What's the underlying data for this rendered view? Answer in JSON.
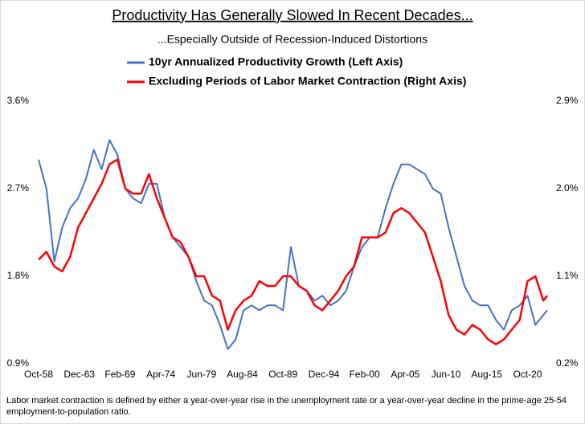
{
  "chart_data": {
    "type": "line",
    "title": "Productivity Has Generally Slowed In Recent Decades...",
    "subtitle": "...Especially Outside of Recession-Induced Distortions",
    "footnote": "Labor market contraction is defined by either a year-over-year rise in the unemployment rate or a year-over-year decline in the prime-age 25-54 employment-to-population ratio.",
    "x": [
      1958.75,
      1959.75,
      1960.75,
      1961.75,
      1962.75,
      1963.75,
      1964.75,
      1965.75,
      1966.75,
      1967.75,
      1968.75,
      1969.75,
      1970.75,
      1971.75,
      1972.75,
      1973.75,
      1974.75,
      1975.75,
      1976.75,
      1977.75,
      1978.75,
      1979.75,
      1980.75,
      1981.75,
      1982.75,
      1983.75,
      1984.75,
      1985.75,
      1986.75,
      1987.75,
      1988.75,
      1989.75,
      1990.75,
      1991.75,
      1992.75,
      1993.75,
      1994.75,
      1995.75,
      1996.75,
      1997.75,
      1998.75,
      1999.75,
      2000.75,
      2001.75,
      2002.75,
      2003.75,
      2004.75,
      2005.75,
      2006.75,
      2007.75,
      2008.75,
      2009.75,
      2010.75,
      2011.75,
      2012.75,
      2013.75,
      2014.75,
      2015.75,
      2016.75,
      2017.75,
      2018.75,
      2019.75,
      2020.75,
      2021.75,
      2022.75,
      2023.25
    ],
    "xlim": [
      1958.75,
      2023.25
    ],
    "xticks": [
      {
        "value": 1958.75,
        "label": "Oct-58"
      },
      {
        "value": 1963.92,
        "label": "Dec-63"
      },
      {
        "value": 1969.08,
        "label": "Feb-69"
      },
      {
        "value": 1974.25,
        "label": "Apr-74"
      },
      {
        "value": 1979.42,
        "label": "Jun-79"
      },
      {
        "value": 1984.58,
        "label": "Aug-84"
      },
      {
        "value": 1989.75,
        "label": "Oct-89"
      },
      {
        "value": 1994.92,
        "label": "Dec-94"
      },
      {
        "value": 2000.08,
        "label": "Feb-00"
      },
      {
        "value": 2005.25,
        "label": "Apr-05"
      },
      {
        "value": 2010.42,
        "label": "Jun-10"
      },
      {
        "value": 2015.58,
        "label": "Aug-15"
      },
      {
        "value": 2020.75,
        "label": "Oct-20"
      }
    ],
    "ylim": [
      0.9,
      3.6
    ],
    "yticks": [
      {
        "value": 0.9,
        "label": "0.9%"
      },
      {
        "value": 1.8,
        "label": "1.8%"
      },
      {
        "value": 2.7,
        "label": "2.7%"
      },
      {
        "value": 3.6,
        "label": "3.6%"
      }
    ],
    "y2lim": [
      0.2,
      2.9
    ],
    "y2ticks": [
      {
        "value": 0.2,
        "label": "0.2%"
      },
      {
        "value": 1.1,
        "label": "1.1%"
      },
      {
        "value": 2.0,
        "label": "2.0%"
      },
      {
        "value": 2.9,
        "label": "2.9%"
      }
    ],
    "grid": false,
    "series": [
      {
        "name": "10yr Annualized Productivity Growth (Left Axis)",
        "color": "#4472c4",
        "values": [
          3.0,
          2.7,
          1.95,
          2.3,
          2.5,
          2.6,
          2.8,
          3.1,
          2.9,
          3.2,
          3.05,
          2.7,
          2.6,
          2.55,
          2.75,
          2.75,
          2.4,
          2.2,
          2.1,
          2.0,
          1.75,
          1.55,
          1.5,
          1.3,
          1.05,
          1.15,
          1.45,
          1.5,
          1.45,
          1.5,
          1.5,
          1.45,
          2.1,
          1.7,
          1.65,
          1.55,
          1.6,
          1.5,
          1.55,
          1.65,
          1.9,
          2.1,
          2.2,
          2.2,
          2.5,
          2.75,
          2.95,
          2.95,
          2.9,
          2.85,
          2.7,
          2.65,
          2.3,
          2.0,
          1.7,
          1.55,
          1.5,
          1.5,
          1.35,
          1.25,
          1.45,
          1.5,
          1.6,
          1.3,
          1.4,
          1.45
        ]
      },
      {
        "name": "Excluding Periods of Labor Market Contraction (Right Axis)",
        "color": "#ff0000",
        "axis": "y2",
        "values": [
          1.27,
          1.35,
          1.2,
          1.15,
          1.3,
          1.6,
          1.75,
          1.9,
          2.05,
          2.25,
          2.3,
          2.0,
          1.95,
          1.95,
          2.15,
          1.9,
          1.7,
          1.5,
          1.45,
          1.3,
          1.1,
          1.1,
          0.9,
          0.85,
          0.55,
          0.75,
          0.85,
          0.9,
          1.05,
          1.0,
          1.0,
          1.1,
          1.1,
          1.0,
          0.95,
          0.8,
          0.75,
          0.85,
          0.95,
          1.1,
          1.2,
          1.5,
          1.5,
          1.5,
          1.55,
          1.75,
          1.8,
          1.75,
          1.65,
          1.55,
          1.3,
          1.05,
          0.7,
          0.55,
          0.5,
          0.6,
          0.55,
          0.45,
          0.4,
          0.45,
          0.55,
          0.65,
          1.05,
          1.1,
          0.85,
          0.9
        ]
      }
    ]
  }
}
